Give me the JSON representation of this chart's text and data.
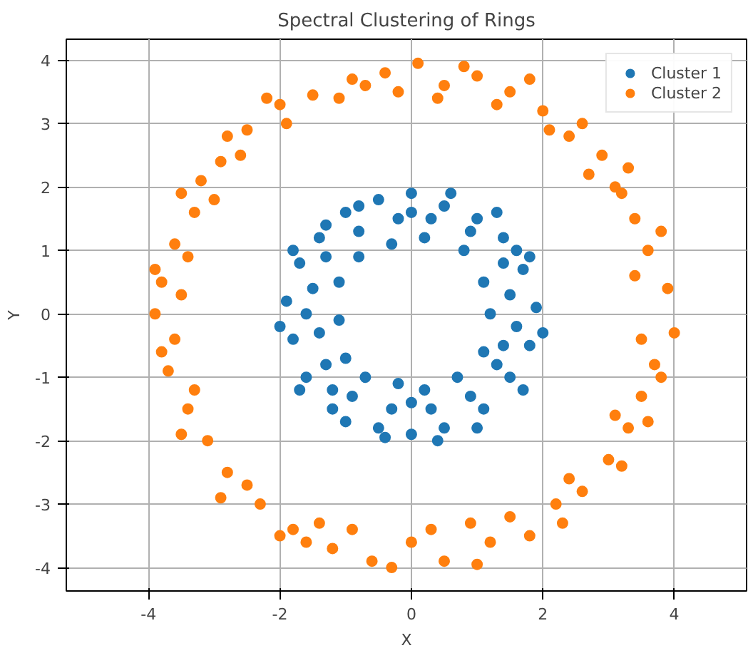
{
  "chart_data": {
    "type": "scatter",
    "title": "Spectral Clustering of Rings",
    "xlabel": "X",
    "ylabel": "Y",
    "xlim": [
      -5.25,
      5.1
    ],
    "ylim": [
      -4.37,
      4.33
    ],
    "xticks": [
      -4,
      -2,
      0,
      2,
      4
    ],
    "yticks": [
      -4,
      -3,
      -2,
      -1,
      0,
      1,
      2,
      3,
      4
    ],
    "grid": true,
    "legend": "top right",
    "marker": "circle",
    "series": [
      {
        "name": "Cluster 1",
        "color": "#1f77b4",
        "x": [
          0,
          0.5,
          -0.5,
          1.0,
          -1.0,
          1.4,
          -1.4,
          1.7,
          -1.7,
          1.9,
          -1.9,
          1.8,
          -1.8,
          1.5,
          -1.6,
          1.1,
          -1.2,
          0.5,
          -0.5,
          0,
          0.2,
          -0.3,
          0.8,
          -0.8,
          1.1,
          -1.1,
          1.2,
          -1.1,
          1.1,
          -1.0,
          0.7,
          -0.7,
          0.2,
          -0.2,
          0.3,
          -0.2,
          0.9,
          -0.8,
          1.4,
          -1.3,
          1.5,
          -1.5,
          1.6,
          -1.4,
          1.3,
          -1.3,
          0.9,
          -0.9,
          0.3,
          -0.3,
          0.6,
          -0.8,
          1.3,
          -1.3,
          1.8,
          -1.8,
          2.0,
          -2.0,
          1.7,
          -1.7,
          1.0,
          -1.0,
          0.4,
          -0.4,
          1.6,
          -1.6,
          0.0,
          0.0,
          1.4,
          -1.2
        ],
        "values": [
          1.9,
          1.7,
          1.8,
          1.5,
          1.6,
          1.2,
          1.2,
          0.7,
          0.8,
          0.1,
          0.2,
          -0.5,
          -0.4,
          -1.0,
          -1.0,
          -1.5,
          -1.5,
          -1.8,
          -1.8,
          -1.9,
          1.2,
          1.1,
          1.0,
          0.9,
          0.5,
          0.5,
          0.0,
          -0.1,
          -0.6,
          -0.7,
          -1.0,
          -1.0,
          -1.2,
          -1.1,
          1.5,
          1.5,
          1.3,
          1.3,
          0.8,
          0.9,
          0.3,
          0.4,
          -0.2,
          -0.3,
          -0.8,
          -0.8,
          -1.3,
          -1.3,
          -1.5,
          -1.5,
          1.9,
          1.7,
          1.6,
          1.4,
          0.9,
          1.0,
          -0.3,
          -0.2,
          -1.2,
          -1.2,
          -1.8,
          -1.7,
          -2.0,
          -1.95,
          1.0,
          0.0,
          1.6,
          -1.4,
          -0.5,
          -1.2
        ]
      },
      {
        "name": "Cluster 2",
        "color": "#ff7f0e",
        "x": [
          0.1,
          0.5,
          -0.4,
          -0.9,
          1.0,
          1.5,
          -1.5,
          -2.0,
          2.0,
          2.4,
          -2.5,
          -2.9,
          2.9,
          3.1,
          -3.2,
          -3.3,
          3.4,
          3.6,
          -3.6,
          -3.8,
          3.9,
          4.0,
          -3.9,
          -3.6,
          3.7,
          3.5,
          -3.7,
          -3.4,
          3.3,
          3.0,
          -3.1,
          -2.8,
          2.6,
          2.2,
          -2.3,
          -1.8,
          1.8,
          1.2,
          -1.2,
          -0.6,
          0.5,
          0.0,
          -0.3,
          0.9,
          -0.9,
          1.5,
          -1.6,
          2.4,
          -2.5,
          3.1,
          -3.3,
          3.5,
          -3.5,
          3.4,
          -3.4,
          3.2,
          -3.0,
          2.7,
          -2.6,
          2.1,
          -1.9,
          1.3,
          -1.1,
          0.4,
          -0.2,
          0.8,
          -0.7,
          1.8,
          -2.2,
          2.6,
          -2.8,
          3.3,
          -3.5,
          3.8,
          -3.9,
          3.8,
          -3.8,
          3.6,
          -3.5,
          3.2,
          -2.9,
          2.3,
          -2.0,
          1.0,
          0.3,
          -1.4
        ],
        "values": [
          3.95,
          3.6,
          3.8,
          3.7,
          3.75,
          3.5,
          3.45,
          3.3,
          3.2,
          2.8,
          2.9,
          2.4,
          2.5,
          2.0,
          2.1,
          1.6,
          1.5,
          1.0,
          1.1,
          0.5,
          0.4,
          -0.3,
          0.0,
          -0.4,
          -0.8,
          -1.3,
          -0.9,
          -1.5,
          -1.8,
          -2.3,
          -2.0,
          -2.5,
          -2.8,
          -3.0,
          -3.0,
          -3.4,
          -3.5,
          -3.6,
          -3.7,
          -3.9,
          -3.9,
          -3.6,
          -4.0,
          -3.3,
          -3.4,
          -3.2,
          -3.6,
          -2.6,
          -2.7,
          -1.6,
          -1.2,
          -0.4,
          0.3,
          0.6,
          0.9,
          1.9,
          1.8,
          2.2,
          2.5,
          2.9,
          3.0,
          3.3,
          3.4,
          3.4,
          3.5,
          3.9,
          3.6,
          3.7,
          3.4,
          3.0,
          2.8,
          2.3,
          1.9,
          1.3,
          0.7,
          -1.0,
          -0.6,
          -1.7,
          -1.9,
          -2.4,
          -2.9,
          -3.3,
          -3.5,
          -3.95,
          -3.4,
          -3.3
        ]
      }
    ]
  }
}
